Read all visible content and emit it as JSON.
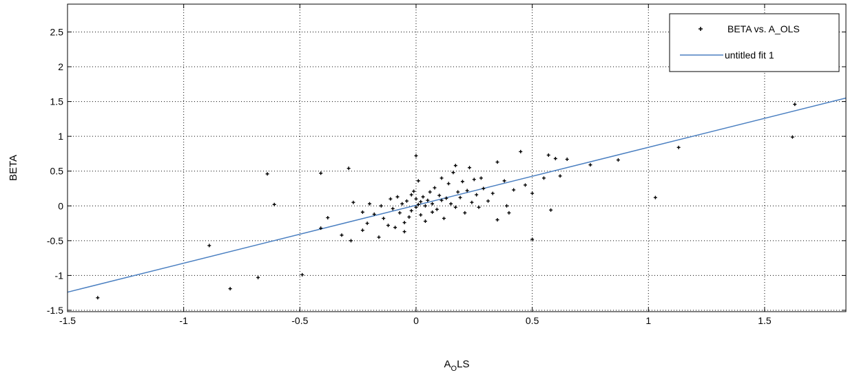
{
  "chart_data": {
    "type": "scatter",
    "xlabel": "A_OLS",
    "xlabel_parts": {
      "base": "A",
      "sub": "O",
      "rest": "LS"
    },
    "ylabel": "BETA",
    "xlim": [
      -1.5,
      1.85
    ],
    "ylim": [
      -1.52,
      2.9
    ],
    "xticks": [
      -1.5,
      -1,
      -0.5,
      0,
      0.5,
      1,
      1.5
    ],
    "xtick_labels": [
      "-1.5",
      "-1",
      "-0.5",
      "0",
      "0.5",
      "1",
      "1.5"
    ],
    "yticks": [
      -1.5,
      -1,
      -0.5,
      0,
      0.5,
      1,
      1.5,
      2,
      2.5
    ],
    "ytick_labels": [
      "-1.5",
      "-1",
      "-0.5",
      "0",
      "0.5",
      "1",
      "1.5",
      "2",
      "2.5"
    ],
    "grid": true,
    "legend": {
      "position": "top-right",
      "entries": [
        "BETA vs. A_OLS",
        "untitled fit 1"
      ]
    },
    "colors": {
      "points": "#000000",
      "fit": "#4a7fc1",
      "grid": "#000000"
    },
    "series": [
      {
        "name": "BETA vs. A_OLS",
        "kind": "points",
        "points": [
          [
            -1.37,
            -1.32
          ],
          [
            -0.89,
            -0.57
          ],
          [
            -0.8,
            -1.19
          ],
          [
            -0.68,
            -1.03
          ],
          [
            -0.64,
            0.46
          ],
          [
            -0.61,
            0.02
          ],
          [
            -0.49,
            -0.99
          ],
          [
            -0.41,
            0.47
          ],
          [
            -0.41,
            -0.32
          ],
          [
            -0.38,
            -0.17
          ],
          [
            -0.32,
            -0.42
          ],
          [
            -0.29,
            0.54
          ],
          [
            -0.28,
            -0.5
          ],
          [
            -0.27,
            0.05
          ],
          [
            -0.23,
            -0.09
          ],
          [
            -0.23,
            -0.35
          ],
          [
            -0.21,
            -0.25
          ],
          [
            -0.2,
            0.03
          ],
          [
            -0.18,
            -0.12
          ],
          [
            -0.16,
            -0.45
          ],
          [
            -0.15,
            0.0
          ],
          [
            -0.14,
            -0.18
          ],
          [
            -0.12,
            -0.28
          ],
          [
            -0.11,
            0.1
          ],
          [
            -0.1,
            -0.04
          ],
          [
            -0.09,
            -0.31
          ],
          [
            -0.08,
            0.13
          ],
          [
            -0.07,
            -0.1
          ],
          [
            -0.06,
            0.03
          ],
          [
            -0.05,
            -0.24
          ],
          [
            -0.05,
            -0.37
          ],
          [
            -0.04,
            0.07
          ],
          [
            -0.03,
            -0.16
          ],
          [
            -0.02,
            0.16
          ],
          [
            -0.02,
            -0.07
          ],
          [
            -0.01,
            0.21
          ],
          [
            0.0,
            -0.02
          ],
          [
            0.0,
            0.1
          ],
          [
            0.0,
            0.72
          ],
          [
            0.01,
            0.02
          ],
          [
            0.01,
            0.36
          ],
          [
            0.02,
            -0.13
          ],
          [
            0.02,
            0.06
          ],
          [
            0.03,
            0.13
          ],
          [
            0.04,
            0.0
          ],
          [
            0.04,
            -0.22
          ],
          [
            0.05,
            0.08
          ],
          [
            0.06,
            0.2
          ],
          [
            0.07,
            -0.09
          ],
          [
            0.07,
            0.03
          ],
          [
            0.08,
            0.26
          ],
          [
            0.09,
            -0.05
          ],
          [
            0.1,
            0.15
          ],
          [
            0.11,
            0.08
          ],
          [
            0.11,
            0.4
          ],
          [
            0.12,
            -0.18
          ],
          [
            0.13,
            0.11
          ],
          [
            0.14,
            0.32
          ],
          [
            0.15,
            0.03
          ],
          [
            0.16,
            0.48
          ],
          [
            0.17,
            0.58
          ],
          [
            0.17,
            -0.02
          ],
          [
            0.18,
            0.2
          ],
          [
            0.19,
            0.12
          ],
          [
            0.2,
            0.35
          ],
          [
            0.21,
            -0.1
          ],
          [
            0.22,
            0.22
          ],
          [
            0.23,
            0.55
          ],
          [
            0.24,
            0.05
          ],
          [
            0.25,
            0.38
          ],
          [
            0.26,
            0.16
          ],
          [
            0.27,
            -0.02
          ],
          [
            0.28,
            0.4
          ],
          [
            0.29,
            0.25
          ],
          [
            0.31,
            0.07
          ],
          [
            0.33,
            0.18
          ],
          [
            0.35,
            0.63
          ],
          [
            0.35,
            -0.2
          ],
          [
            0.38,
            0.36
          ],
          [
            0.39,
            0.0
          ],
          [
            0.4,
            -0.1
          ],
          [
            0.42,
            0.23
          ],
          [
            0.45,
            0.78
          ],
          [
            0.47,
            0.3
          ],
          [
            0.5,
            0.18
          ],
          [
            0.5,
            -0.48
          ],
          [
            0.55,
            0.4
          ],
          [
            0.57,
            0.73
          ],
          [
            0.58,
            -0.06
          ],
          [
            0.6,
            0.68
          ],
          [
            0.62,
            0.43
          ],
          [
            0.65,
            0.67
          ],
          [
            0.75,
            0.59
          ],
          [
            0.87,
            0.66
          ],
          [
            1.03,
            0.12
          ],
          [
            1.13,
            0.84
          ],
          [
            1.62,
            0.99
          ],
          [
            1.63,
            1.46
          ]
        ]
      },
      {
        "name": "untitled fit 1",
        "kind": "line",
        "points": [
          [
            -1.5,
            -1.24
          ],
          [
            1.85,
            1.55
          ]
        ]
      }
    ]
  }
}
